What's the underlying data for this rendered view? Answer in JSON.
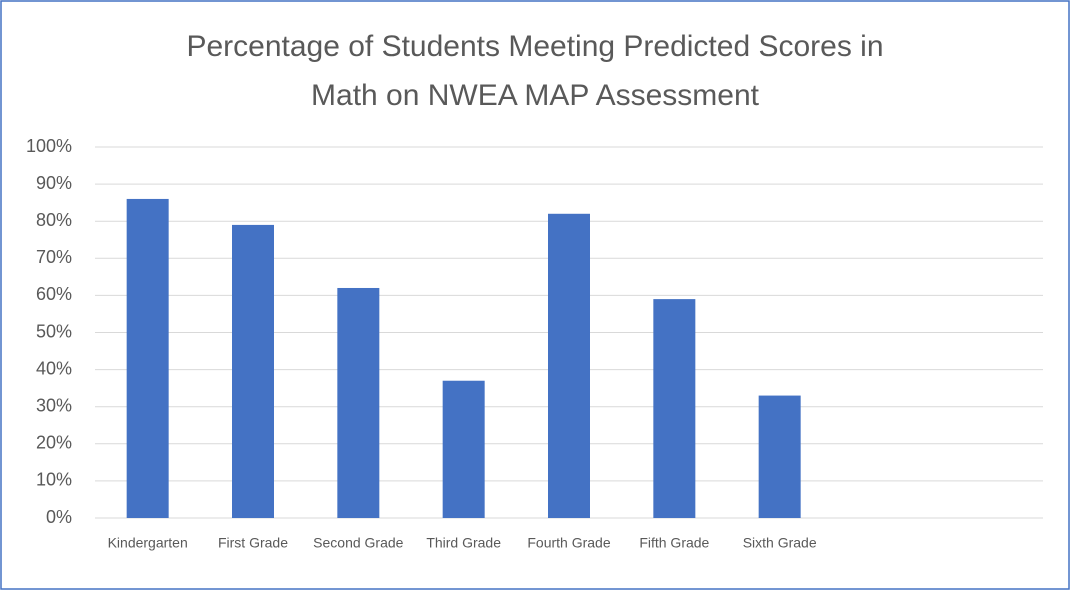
{
  "chart_data": {
    "type": "bar",
    "title": "Percentage of Students Meeting Predicted Scores in Math on NWEA MAP Assessment",
    "categories": [
      "Kindergarten",
      "First Grade",
      "Second Grade",
      "Third Grade",
      "Fourth Grade",
      "Fifth Grade",
      "Sixth Grade",
      null,
      null
    ],
    "values": [
      86,
      79,
      62,
      37,
      82,
      59,
      33,
      null,
      null
    ],
    "color": "#4472c4",
    "ylim": [
      0,
      100
    ],
    "yticks": [
      {
        "value": 0,
        "label": "0%"
      },
      {
        "value": 10,
        "label": "10%"
      },
      {
        "value": 20,
        "label": "20%"
      },
      {
        "value": 30,
        "label": "30%"
      },
      {
        "value": 40,
        "label": "40%"
      },
      {
        "value": 50,
        "label": "50%"
      },
      {
        "value": 60,
        "label": "60%"
      },
      {
        "value": 70,
        "label": "70%"
      },
      {
        "value": 80,
        "label": "80%"
      },
      {
        "value": 90,
        "label": "90%"
      },
      {
        "value": 100,
        "label": "100%"
      }
    ],
    "grid": true
  }
}
